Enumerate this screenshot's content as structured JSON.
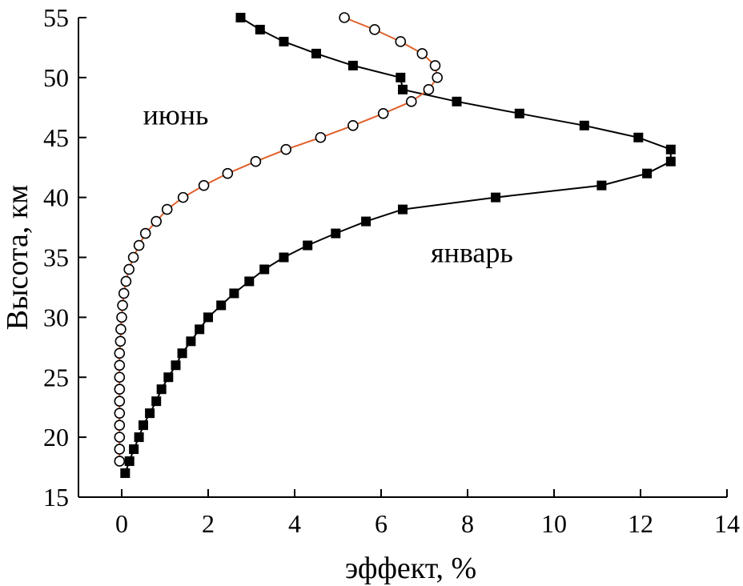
{
  "chart_data": {
    "type": "line",
    "title": "",
    "xlabel": "эффект, %",
    "ylabel": "Высота, км",
    "xlim": [
      -1,
      14
    ],
    "ylim": [
      15,
      55
    ],
    "xticks": [
      0,
      2,
      4,
      6,
      8,
      10,
      12,
      14
    ],
    "yticks": [
      15,
      20,
      25,
      30,
      35,
      40,
      45,
      50,
      55
    ],
    "grid": false,
    "series": [
      {
        "name": "январь",
        "marker": "filled-square",
        "line_color": "#000000",
        "marker_color": "#000000",
        "points": [
          {
            "x": 0.08,
            "y": 17
          },
          {
            "x": 0.18,
            "y": 18
          },
          {
            "x": 0.28,
            "y": 19
          },
          {
            "x": 0.4,
            "y": 20
          },
          {
            "x": 0.5,
            "y": 21
          },
          {
            "x": 0.65,
            "y": 22
          },
          {
            "x": 0.8,
            "y": 23
          },
          {
            "x": 0.92,
            "y": 24
          },
          {
            "x": 1.08,
            "y": 25
          },
          {
            "x": 1.25,
            "y": 26
          },
          {
            "x": 1.4,
            "y": 27
          },
          {
            "x": 1.6,
            "y": 28
          },
          {
            "x": 1.8,
            "y": 29
          },
          {
            "x": 2.0,
            "y": 30
          },
          {
            "x": 2.3,
            "y": 31
          },
          {
            "x": 2.6,
            "y": 32
          },
          {
            "x": 2.95,
            "y": 33
          },
          {
            "x": 3.3,
            "y": 34
          },
          {
            "x": 3.75,
            "y": 35
          },
          {
            "x": 4.3,
            "y": 36
          },
          {
            "x": 4.95,
            "y": 37
          },
          {
            "x": 5.65,
            "y": 38
          },
          {
            "x": 6.5,
            "y": 39
          },
          {
            "x": 8.65,
            "y": 40
          },
          {
            "x": 11.1,
            "y": 41
          },
          {
            "x": 12.15,
            "y": 42
          },
          {
            "x": 12.7,
            "y": 43
          },
          {
            "x": 12.7,
            "y": 44
          },
          {
            "x": 11.95,
            "y": 45
          },
          {
            "x": 10.7,
            "y": 46
          },
          {
            "x": 9.2,
            "y": 47
          },
          {
            "x": 7.75,
            "y": 48
          },
          {
            "x": 6.5,
            "y": 49
          },
          {
            "x": 6.45,
            "y": 50
          },
          {
            "x": 5.35,
            "y": 51
          },
          {
            "x": 4.5,
            "y": 52
          },
          {
            "x": 3.75,
            "y": 53
          },
          {
            "x": 3.2,
            "y": 54
          },
          {
            "x": 2.75,
            "y": 55
          }
        ]
      },
      {
        "name": "июнь",
        "marker": "open-circle",
        "line_color": "#e0602a",
        "marker_color": "#000000",
        "points": [
          {
            "x": -0.05,
            "y": 18
          },
          {
            "x": -0.05,
            "y": 19
          },
          {
            "x": -0.05,
            "y": 20
          },
          {
            "x": -0.05,
            "y": 21
          },
          {
            "x": -0.05,
            "y": 22
          },
          {
            "x": -0.05,
            "y": 23
          },
          {
            "x": -0.05,
            "y": 24
          },
          {
            "x": -0.05,
            "y": 25
          },
          {
            "x": -0.05,
            "y": 26
          },
          {
            "x": -0.05,
            "y": 27
          },
          {
            "x": -0.03,
            "y": 28
          },
          {
            "x": -0.02,
            "y": 29
          },
          {
            "x": 0.0,
            "y": 30
          },
          {
            "x": 0.02,
            "y": 31
          },
          {
            "x": 0.05,
            "y": 32
          },
          {
            "x": 0.1,
            "y": 33
          },
          {
            "x": 0.17,
            "y": 34
          },
          {
            "x": 0.27,
            "y": 35
          },
          {
            "x": 0.4,
            "y": 36
          },
          {
            "x": 0.55,
            "y": 37
          },
          {
            "x": 0.8,
            "y": 38
          },
          {
            "x": 1.05,
            "y": 39
          },
          {
            "x": 1.42,
            "y": 40
          },
          {
            "x": 1.9,
            "y": 41
          },
          {
            "x": 2.45,
            "y": 42
          },
          {
            "x": 3.1,
            "y": 43
          },
          {
            "x": 3.8,
            "y": 44
          },
          {
            "x": 4.6,
            "y": 45
          },
          {
            "x": 5.35,
            "y": 46
          },
          {
            "x": 6.05,
            "y": 47
          },
          {
            "x": 6.7,
            "y": 48
          },
          {
            "x": 7.1,
            "y": 49
          },
          {
            "x": 7.3,
            "y": 50
          },
          {
            "x": 7.25,
            "y": 51
          },
          {
            "x": 6.95,
            "y": 52
          },
          {
            "x": 6.45,
            "y": 53
          },
          {
            "x": 5.85,
            "y": 54
          },
          {
            "x": 5.15,
            "y": 55
          }
        ]
      }
    ],
    "annotations": [
      {
        "text": "июнь",
        "x": 1.25,
        "y": 46.1
      },
      {
        "text": "январь",
        "x": 8.1,
        "y": 34.6
      }
    ]
  }
}
